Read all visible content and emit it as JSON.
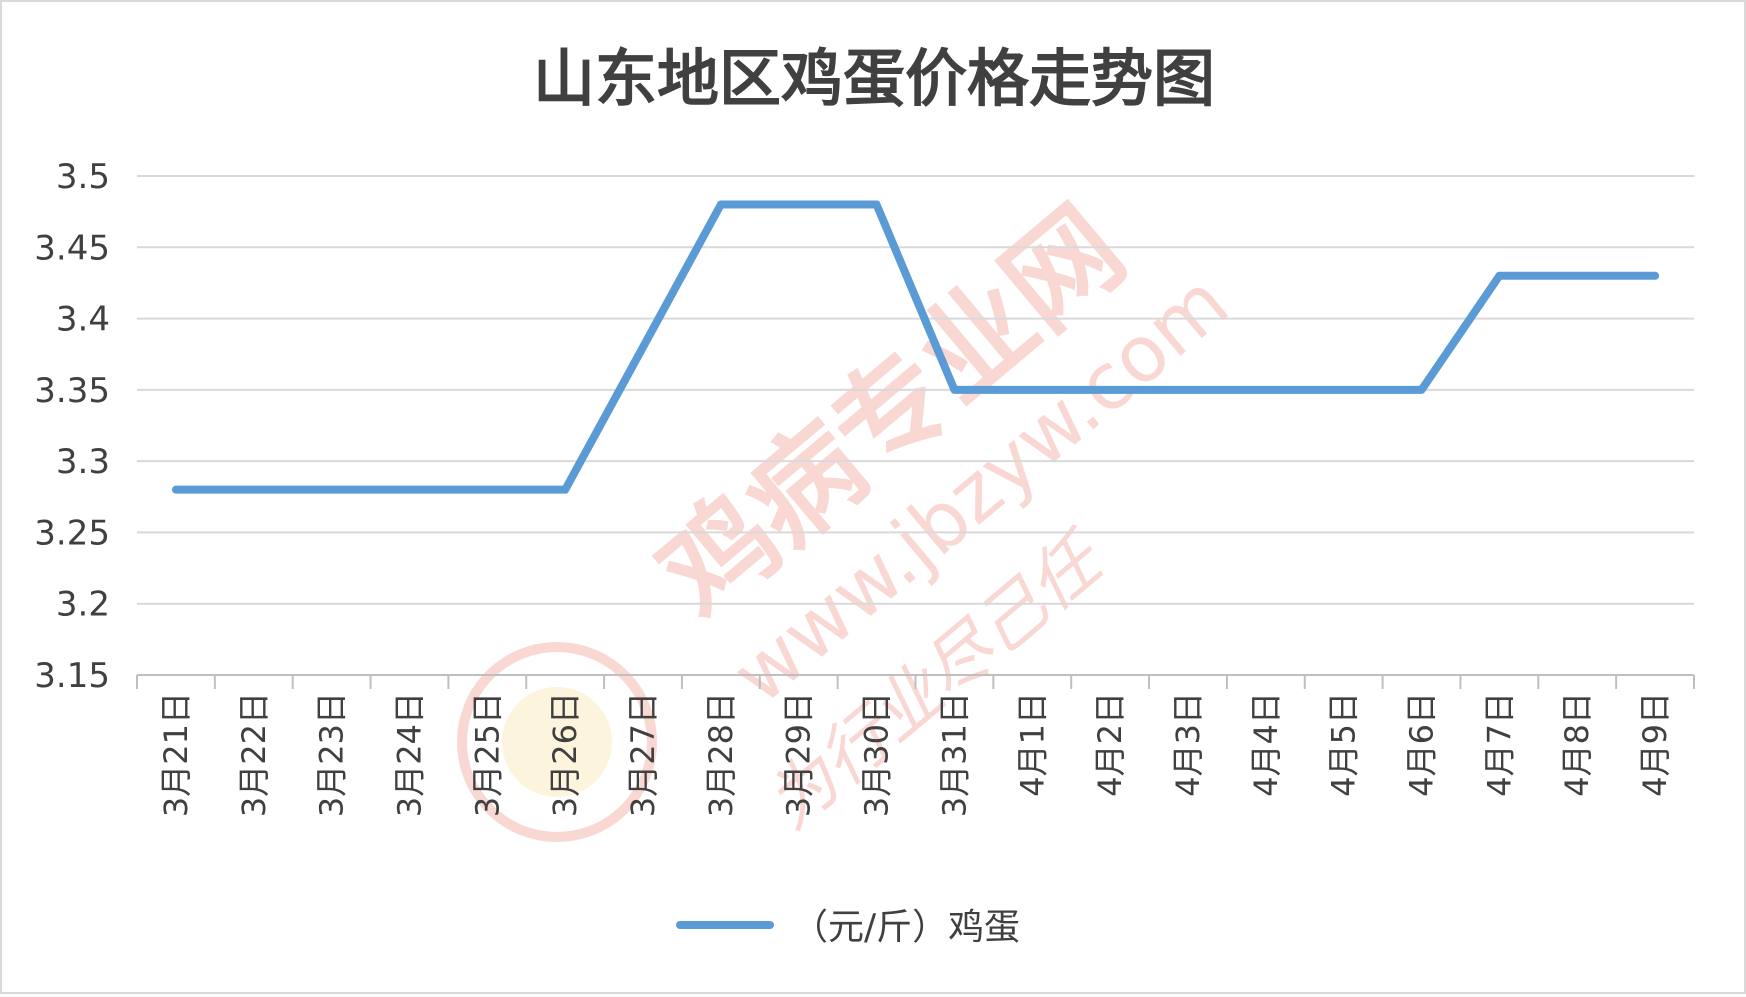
{
  "chart_data": {
    "type": "line",
    "title": "山东地区鸡蛋价格走势图",
    "categories": [
      "3月21日",
      "3月22日",
      "3月23日",
      "3月24日",
      "3月25日",
      "3月26日",
      "3月27日",
      "3月28日",
      "3月29日",
      "3月30日",
      "3月31日",
      "4月1日",
      "4月2日",
      "4月3日",
      "4月4日",
      "4月5日",
      "4月6日",
      "4月7日",
      "4月8日",
      "4月9日"
    ],
    "series": [
      {
        "name": "（元/斤）鸡蛋",
        "color": "#5b9bd5",
        "values": [
          3.28,
          3.28,
          3.28,
          3.28,
          3.28,
          3.28,
          3.38,
          3.48,
          3.48,
          3.48,
          3.35,
          3.35,
          3.35,
          3.35,
          3.35,
          3.35,
          3.35,
          3.43,
          3.43,
          3.43
        ]
      }
    ],
    "ylim": [
      3.15,
      3.5
    ],
    "yticks": [
      "3.15",
      "3.2",
      "3.25",
      "3.3",
      "3.35",
      "3.4",
      "3.45",
      "3.5"
    ],
    "grid": true,
    "legend": "bottom"
  },
  "watermark": {
    "site_name": "鸡病专业网",
    "url": "www.jbzyw.com",
    "slogan": "为行业尽己任",
    "color": "#f4b7b0"
  }
}
